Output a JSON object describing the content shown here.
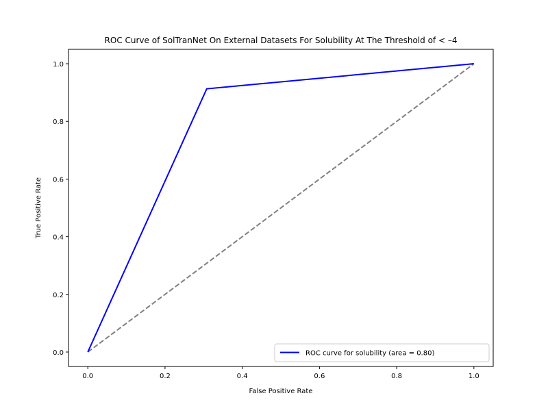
{
  "chart_data": {
    "type": "line",
    "title": "ROC Curve of SolTranNet On External Datasets For Solubility At The Threshold of < –4",
    "xlabel": "False Positive Rate",
    "ylabel": "True Positive Rate",
    "xlim": [
      -0.05,
      1.05
    ],
    "ylim": [
      -0.05,
      1.05
    ],
    "grid": false,
    "legend_position": "lower-right",
    "xticks": [
      "0.0",
      "0.2",
      "0.4",
      "0.6",
      "0.8",
      "1.0"
    ],
    "yticks": [
      "0.0",
      "0.2",
      "0.4",
      "0.6",
      "0.8",
      "1.0"
    ],
    "series": [
      {
        "name": "ROC curve for solubility (area = 0.80)",
        "color": "#0000ff",
        "style": "solid",
        "x": [
          0.0,
          0.308,
          1.0
        ],
        "y": [
          0.0,
          0.913,
          1.0
        ]
      }
    ],
    "reference_line": {
      "color": "#808080",
      "style": "dashed",
      "x": [
        0.0,
        1.0
      ],
      "y": [
        0.0,
        1.0
      ]
    }
  }
}
